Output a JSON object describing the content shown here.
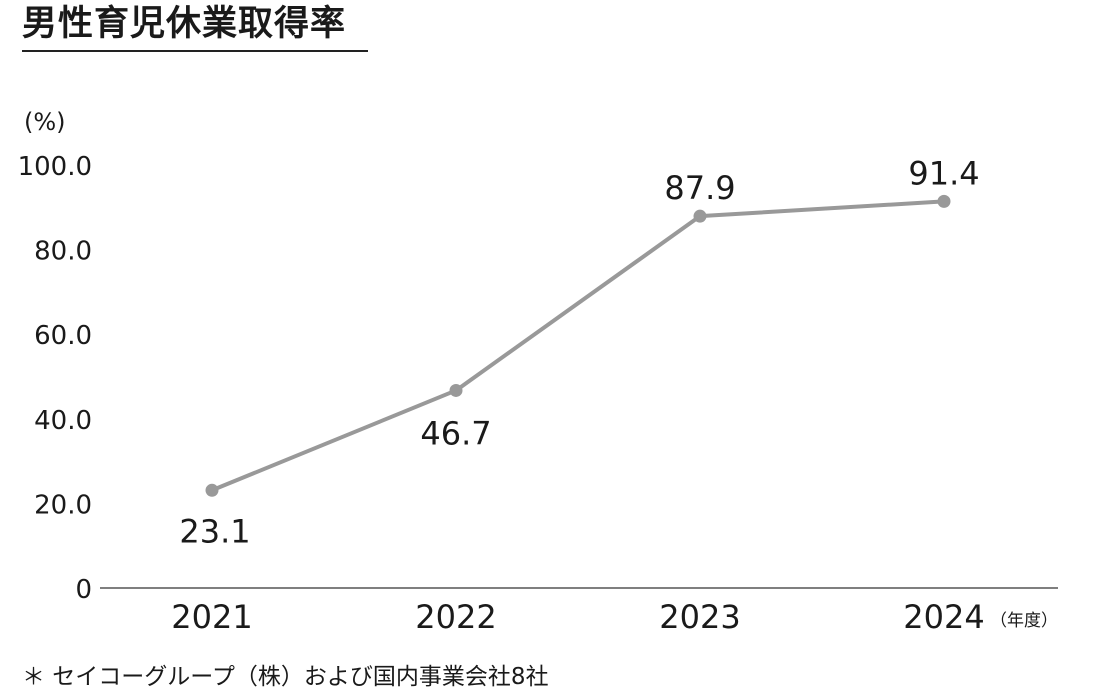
{
  "title": "男性育児休業取得率",
  "footnote": "＊ セイコーグループ（株）および国内事業会社8社",
  "chart_data": {
    "type": "line",
    "title": "男性育児休業取得率",
    "ylabel": "(%)",
    "xlabel": "（年度）",
    "categories": [
      "2021",
      "2022",
      "2023",
      "2024"
    ],
    "series": [
      {
        "values": [
          23.1,
          46.7,
          87.9,
          91.4
        ],
        "color": "#999999"
      }
    ],
    "data_labels": [
      "23.1",
      "46.7",
      "87.9",
      "91.4"
    ],
    "yticks": [
      "0",
      "20.0",
      "40.0",
      "60.0",
      "80.0",
      "100.0"
    ],
    "ylim": [
      0,
      100
    ],
    "grid": false,
    "legend": "none"
  }
}
